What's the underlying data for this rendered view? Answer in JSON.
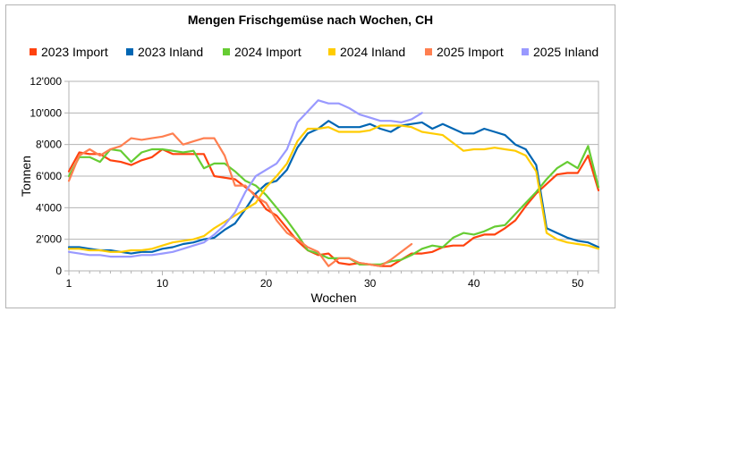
{
  "chart_data": {
    "type": "line",
    "title": "Mengen Frischgemüse nach Wochen, CH",
    "xlabel": "Wochen",
    "ylabel": "Tonnen",
    "xlim": [
      1,
      52
    ],
    "ylim": [
      0,
      12000
    ],
    "x_ticks": [
      "1",
      "10",
      "20",
      "30",
      "40",
      "50"
    ],
    "x_tick_values": [
      1,
      10,
      20,
      30,
      40,
      50
    ],
    "y_ticks": [
      "0",
      "2'000",
      "4'000",
      "6'000",
      "8'000",
      "10'000",
      "12'000"
    ],
    "y_tick_values": [
      0,
      2000,
      4000,
      6000,
      8000,
      10000,
      12000
    ],
    "grid": true,
    "legend_position": "top",
    "series": [
      {
        "name": "2023 Import",
        "color": "#ff420e",
        "x": [
          1,
          2,
          3,
          4,
          5,
          6,
          7,
          8,
          9,
          10,
          11,
          12,
          13,
          14,
          15,
          16,
          17,
          18,
          19,
          20,
          21,
          22,
          23,
          24,
          25,
          26,
          27,
          28,
          29,
          30,
          31,
          32,
          33,
          34,
          35,
          36,
          37,
          38,
          39,
          40,
          41,
          42,
          43,
          44,
          45,
          46,
          47,
          48,
          49,
          50,
          51,
          52
        ],
        "values": [
          6300,
          7500,
          7400,
          7400,
          7000,
          6900,
          6700,
          7000,
          7200,
          7700,
          7400,
          7400,
          7400,
          7400,
          6000,
          5900,
          5800,
          5300,
          4800,
          3900,
          3500,
          2700,
          1900,
          1300,
          1000,
          1100,
          500,
          400,
          500,
          400,
          300,
          300,
          700,
          1100,
          1100,
          1200,
          1500,
          1600,
          1600,
          2100,
          2300,
          2300,
          2700,
          3200,
          4100,
          4900,
          5500,
          6100,
          6200,
          6200,
          7300,
          5100
        ]
      },
      {
        "name": "2023 Inland",
        "color": "#0066b3",
        "x": [
          1,
          2,
          3,
          4,
          5,
          6,
          7,
          8,
          9,
          10,
          11,
          12,
          13,
          14,
          15,
          16,
          17,
          18,
          19,
          20,
          21,
          22,
          23,
          24,
          25,
          26,
          27,
          28,
          29,
          30,
          31,
          32,
          33,
          34,
          35,
          36,
          37,
          38,
          39,
          40,
          41,
          42,
          43,
          44,
          45,
          46,
          47,
          48,
          49,
          50,
          51,
          52
        ],
        "values": [
          1500,
          1500,
          1400,
          1300,
          1300,
          1200,
          1100,
          1200,
          1200,
          1400,
          1500,
          1700,
          1800,
          2000,
          2100,
          2600,
          3000,
          3900,
          4900,
          5500,
          5700,
          6400,
          7800,
          8700,
          9000,
          9500,
          9100,
          9100,
          9100,
          9300,
          9000,
          8800,
          9200,
          9300,
          9400,
          9000,
          9300,
          9000,
          8700,
          8700,
          9000,
          8800,
          8600,
          8000,
          7700,
          6700,
          2700,
          2400,
          2100,
          1900,
          1800,
          1500
        ]
      },
      {
        "name": "2024 Import",
        "color": "#66cc33",
        "x": [
          1,
          2,
          3,
          4,
          5,
          6,
          7,
          8,
          9,
          10,
          11,
          12,
          13,
          14,
          15,
          16,
          17,
          18,
          19,
          20,
          21,
          22,
          23,
          24,
          25,
          26,
          27,
          28,
          29,
          30,
          31,
          32,
          33,
          34,
          35,
          36,
          37,
          38,
          39,
          40,
          41,
          42,
          43,
          44,
          45,
          46,
          47,
          48,
          49,
          50,
          51,
          52
        ],
        "values": [
          6000,
          7200,
          7200,
          6900,
          7700,
          7600,
          6900,
          7500,
          7700,
          7700,
          7600,
          7500,
          7600,
          6500,
          6800,
          6800,
          6300,
          5700,
          5400,
          4800,
          4000,
          3200,
          2300,
          1300,
          1100,
          800,
          800,
          800,
          400,
          400,
          400,
          600,
          700,
          1000,
          1400,
          1600,
          1500,
          2100,
          2400,
          2300,
          2500,
          2800,
          2900,
          3600,
          4300,
          5000,
          5800,
          6500,
          6900,
          6500,
          7900,
          5300
        ]
      },
      {
        "name": "2024 Inland",
        "color": "#ffcc00",
        "x": [
          1,
          2,
          3,
          4,
          5,
          6,
          7,
          8,
          9,
          10,
          11,
          12,
          13,
          14,
          15,
          16,
          17,
          18,
          19,
          20,
          21,
          22,
          23,
          24,
          25,
          26,
          27,
          28,
          29,
          30,
          31,
          32,
          33,
          34,
          35,
          36,
          37,
          38,
          39,
          40,
          41,
          42,
          43,
          44,
          45,
          46,
          47,
          48,
          49,
          50,
          51,
          52
        ],
        "values": [
          1400,
          1400,
          1300,
          1300,
          1200,
          1200,
          1300,
          1300,
          1400,
          1600,
          1800,
          1900,
          2000,
          2200,
          2700,
          3100,
          3500,
          3900,
          4300,
          5300,
          6000,
          6800,
          8200,
          9000,
          9000,
          9100,
          8800,
          8800,
          8800,
          8900,
          9200,
          9200,
          9200,
          9100,
          8800,
          8700,
          8600,
          8100,
          7600,
          7700,
          7700,
          7800,
          7700,
          7600,
          7300,
          6300,
          2400,
          2000,
          1800,
          1700,
          1600,
          1400
        ]
      },
      {
        "name": "2025 Import",
        "color": "#ff7f50",
        "x": [
          1,
          2,
          3,
          4,
          5,
          6,
          7,
          8,
          9,
          10,
          11,
          12,
          13,
          14,
          15,
          16,
          17,
          18,
          19,
          20,
          21,
          22,
          23,
          24,
          25,
          26,
          27,
          28,
          29,
          30,
          31,
          32,
          33,
          34
        ],
        "values": [
          5700,
          7300,
          7700,
          7300,
          7700,
          7900,
          8400,
          8300,
          8400,
          8500,
          8700,
          8000,
          8200,
          8400,
          8400,
          7300,
          5400,
          5400,
          4700,
          4300,
          3200,
          2400,
          2000,
          1500,
          1200,
          300,
          800,
          800,
          500,
          400,
          300,
          700,
          1200,
          1700
        ]
      },
      {
        "name": "2025 Inland",
        "color": "#9999ff",
        "x": [
          1,
          2,
          3,
          4,
          5,
          6,
          7,
          8,
          9,
          10,
          11,
          12,
          13,
          14,
          15,
          16,
          17,
          18,
          19,
          20,
          21,
          22,
          23,
          24,
          25,
          26,
          27,
          28,
          29,
          30,
          31,
          32,
          33,
          34,
          35
        ],
        "values": [
          1200,
          1100,
          1000,
          1000,
          900,
          900,
          900,
          1000,
          1000,
          1100,
          1200,
          1400,
          1600,
          1800,
          2300,
          2900,
          3700,
          5000,
          6000,
          6400,
          6800,
          7700,
          9400,
          10100,
          10800,
          10600,
          10600,
          10300,
          9900,
          9700,
          9500,
          9500,
          9400,
          9600,
          10000
        ]
      }
    ]
  }
}
